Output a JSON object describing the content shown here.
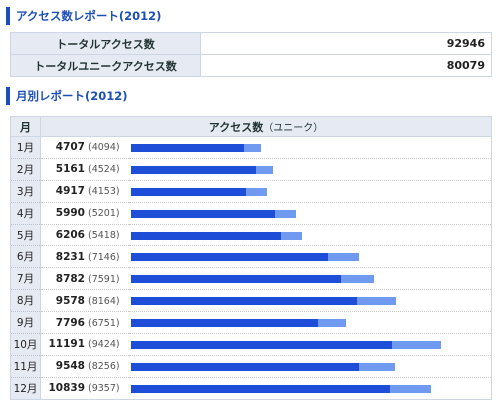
{
  "summary": {
    "title": "アクセス数レポート(2012)",
    "rows": [
      {
        "label": "トータルアクセス数",
        "value": "92946"
      },
      {
        "label": "トータルユニークアクセス数",
        "value": "80079"
      }
    ]
  },
  "monthly": {
    "title": "月別レポート(2012)",
    "header": {
      "month": "月",
      "access": "アクセス数",
      "unique": "（ユニーク）"
    },
    "max_value": 11191,
    "rows": [
      {
        "month": "1月",
        "total": 4707,
        "unique": 4094,
        "total_label": "4707",
        "unique_label": "(4094)"
      },
      {
        "month": "2月",
        "total": 5161,
        "unique": 4524,
        "total_label": "5161",
        "unique_label": "(4524)"
      },
      {
        "month": "3月",
        "total": 4917,
        "unique": 4153,
        "total_label": "4917",
        "unique_label": "(4153)"
      },
      {
        "month": "4月",
        "total": 5990,
        "unique": 5201,
        "total_label": "5990",
        "unique_label": "(5201)"
      },
      {
        "month": "5月",
        "total": 6206,
        "unique": 5418,
        "total_label": "6206",
        "unique_label": "(5418)"
      },
      {
        "month": "6月",
        "total": 8231,
        "unique": 7146,
        "total_label": "8231",
        "unique_label": "(7146)"
      },
      {
        "month": "7月",
        "total": 8782,
        "unique": 7591,
        "total_label": "8782",
        "unique_label": "(7591)"
      },
      {
        "month": "8月",
        "total": 9578,
        "unique": 8164,
        "total_label": "9578",
        "unique_label": "(8164)"
      },
      {
        "month": "9月",
        "total": 7796,
        "unique": 6751,
        "total_label": "7796",
        "unique_label": "(6751)"
      },
      {
        "month": "10月",
        "total": 11191,
        "unique": 9424,
        "total_label": "11191",
        "unique_label": "(9424)"
      },
      {
        "month": "11月",
        "total": 9548,
        "unique": 8256,
        "total_label": "9548",
        "unique_label": "(8256)"
      },
      {
        "month": "12月",
        "total": 10839,
        "unique": 9357,
        "total_label": "10839",
        "unique_label": "(9357)"
      }
    ]
  },
  "colors": {
    "accent": "#1d4fb8",
    "bar_total": "#6f9af0",
    "bar_unique": "#1e4ed8",
    "header_bg": "#e6eaf2"
  }
}
